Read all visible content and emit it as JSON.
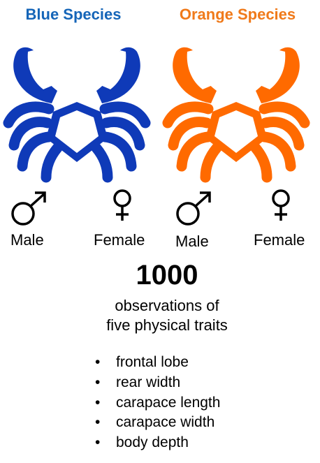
{
  "species": [
    {
      "title": "Blue Species",
      "color": "#0f3ab8",
      "title_color": "#1565b8",
      "male_label": "Male",
      "female_label": "Female"
    },
    {
      "title": "Orange Species",
      "color": "#ff6a00",
      "title_color": "#f07a1a",
      "male_label": "Male",
      "female_label": "Female"
    }
  ],
  "icons": {
    "crab": "crab-icon",
    "male": "male-symbol-icon",
    "female": "female-symbol-icon"
  },
  "observations": {
    "count": "1000",
    "line1": "observations of",
    "line2": "five physical traits"
  },
  "traits": [
    "frontal lobe",
    "rear width",
    "carapace length",
    "carapace width",
    "body depth"
  ],
  "bullet": "•"
}
